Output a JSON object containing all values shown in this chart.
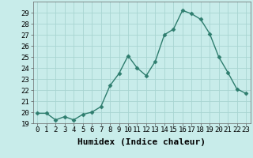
{
  "title": "",
  "xlabel": "Humidex (Indice chaleur)",
  "x": [
    0,
    1,
    2,
    3,
    4,
    5,
    6,
    7,
    8,
    9,
    10,
    11,
    12,
    13,
    14,
    15,
    16,
    17,
    18,
    19,
    20,
    21,
    22,
    23
  ],
  "y": [
    19.9,
    19.9,
    19.3,
    19.6,
    19.3,
    19.8,
    20.0,
    20.5,
    22.4,
    23.5,
    25.1,
    24.0,
    23.3,
    24.6,
    27.0,
    27.5,
    29.2,
    28.9,
    28.4,
    27.1,
    25.0,
    23.6,
    22.1,
    21.7
  ],
  "line_color": "#2e7d6e",
  "marker": "D",
  "marker_size": 2.5,
  "bg_color": "#c8ecea",
  "grid_color": "#a8d5d2",
  "ylim_min": 19,
  "ylim_max": 30,
  "yticks": [
    19,
    20,
    21,
    22,
    23,
    24,
    25,
    26,
    27,
    28,
    29
  ],
  "xlim_min": -0.5,
  "xlim_max": 23.5,
  "xlabel_fontsize": 8,
  "tick_fontsize": 6.5,
  "linewidth": 1.0
}
